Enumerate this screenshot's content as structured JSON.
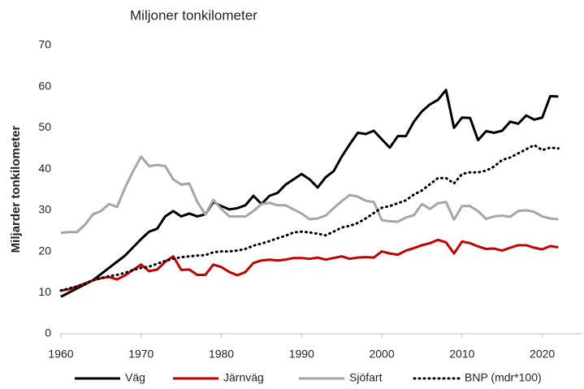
{
  "chart_data": {
    "type": "line",
    "title": "Miljoner tonkilometer",
    "y_label": "Miljarder tonkilometer",
    "x": [
      1960,
      1961,
      1962,
      1963,
      1964,
      1965,
      1966,
      1967,
      1968,
      1969,
      1970,
      1971,
      1972,
      1973,
      1974,
      1975,
      1976,
      1977,
      1978,
      1979,
      1980,
      1981,
      1982,
      1983,
      1984,
      1985,
      1986,
      1987,
      1988,
      1989,
      1990,
      1991,
      1992,
      1993,
      1994,
      1995,
      1996,
      1997,
      1998,
      1999,
      2000,
      2001,
      2002,
      2003,
      2004,
      2005,
      2006,
      2007,
      2008,
      2009,
      2010,
      2011,
      2012,
      2013,
      2014,
      2015,
      2016,
      2017,
      2018,
      2019,
      2020,
      2021,
      2022
    ],
    "series": [
      {
        "name": "Väg",
        "color": "#000000",
        "line_style": "solid",
        "values": [
          9,
          10,
          11,
          12,
          13,
          14.5,
          16,
          17.5,
          19,
          21,
          23,
          24.8,
          25.5,
          28.5,
          29.8,
          28.5,
          29.2,
          28.5,
          29,
          32,
          31,
          30.2,
          30.5,
          31.2,
          33.5,
          31.5,
          33.5,
          34.2,
          36.2,
          37.5,
          38.8,
          37.5,
          35.5,
          38,
          39.5,
          43,
          46,
          48.8,
          48.5,
          49.3,
          47.2,
          45.2,
          48,
          48,
          51.5,
          54,
          55.7,
          56.8,
          59.2,
          50,
          52.5,
          52.4,
          47,
          49.2,
          48.8,
          49.3,
          51.5,
          51,
          53,
          52,
          52.5,
          57.7,
          57.6
        ]
      },
      {
        "name": "Järnväg",
        "color": "#c00000",
        "line_style": "solid",
        "values": [
          10.5,
          10.8,
          11.5,
          12.2,
          13,
          13.5,
          13.8,
          13.2,
          14.2,
          15.5,
          16.8,
          15.2,
          15.6,
          17.5,
          18.8,
          15.5,
          15.6,
          14.3,
          14.3,
          16.8,
          16.2,
          15,
          14.2,
          15,
          17.2,
          17.8,
          18,
          17.8,
          18,
          18.4,
          18.4,
          18.2,
          18.5,
          18,
          18.4,
          18.8,
          18.2,
          18.5,
          18.6,
          18.5,
          20,
          19.5,
          19.2,
          20.2,
          20.8,
          21.5,
          22,
          22.8,
          22.2,
          19.5,
          22.4,
          22,
          21.2,
          20.6,
          20.7,
          20.2,
          20.9,
          21.5,
          21.5,
          20.9,
          20.5,
          21.3,
          21
        ]
      },
      {
        "name": "Sjöfart",
        "color": "#a6a6a6",
        "line_style": "solid",
        "values": [
          24.5,
          24.7,
          24.7,
          26.5,
          29,
          29.8,
          31.5,
          30.8,
          35.5,
          39.5,
          43,
          40.7,
          41,
          40.7,
          37.5,
          36.2,
          36.5,
          32,
          29,
          32.5,
          30.3,
          28.5,
          28.5,
          28.5,
          29.8,
          31.5,
          31.8,
          31.2,
          31.2,
          30.2,
          29.2,
          27.8,
          28,
          28.7,
          30.5,
          32.2,
          33.7,
          33.3,
          32.3,
          32,
          27.6,
          27.3,
          27.2,
          28.2,
          28.8,
          31.5,
          30.3,
          31.7,
          32,
          27.7,
          31,
          31,
          29.8,
          27.9,
          28.5,
          28.7,
          28.4,
          29.8,
          30,
          29.6,
          28.5,
          28,
          27.8
        ]
      },
      {
        "name": "BNP (mdr*100)",
        "color": "#000000",
        "line_style": "dotted",
        "values": [
          10.5,
          11,
          11.5,
          12.2,
          13,
          13.5,
          14,
          14.3,
          14.8,
          15.5,
          16,
          16.3,
          17,
          17.7,
          18.2,
          18.6,
          18.8,
          19,
          19.1,
          19.8,
          20,
          20,
          20.2,
          20.6,
          21.4,
          21.9,
          22.5,
          23.2,
          23.8,
          24.6,
          24.8,
          24.6,
          24.3,
          23.9,
          24.8,
          25.8,
          26.2,
          26.9,
          28,
          29.3,
          30.6,
          31,
          31.7,
          32.4,
          33.8,
          34.8,
          36.3,
          37.8,
          37.8,
          36.5,
          38.8,
          39.2,
          39.2,
          39.6,
          40.6,
          42.2,
          42.8,
          43.8,
          44.8,
          45.8,
          44.6,
          45.2,
          45
        ]
      }
    ],
    "xlim": [
      1960,
      2025
    ],
    "xticks": [
      1960,
      1970,
      1980,
      1990,
      2000,
      2010,
      2020
    ],
    "ylim": [
      0,
      70
    ],
    "yticks": [
      0,
      10,
      20,
      30,
      40,
      50,
      60,
      70
    ],
    "grid": false,
    "legend": "bottom"
  }
}
